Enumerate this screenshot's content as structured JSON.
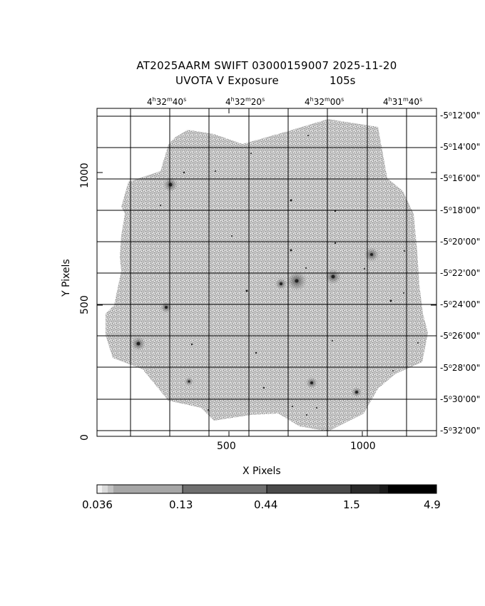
{
  "header": {
    "title_line1": "AT2025AARM SWIFT 03000159007 2025-11-20",
    "title_line2": "UVOTA V Exposure",
    "exposure": "105s"
  },
  "ra_axis": [
    {
      "h": "4",
      "m": "32",
      "s": "40"
    },
    {
      "h": "4",
      "m": "32",
      "s": "20"
    },
    {
      "h": "4",
      "m": "32",
      "s": "00"
    },
    {
      "h": "4",
      "m": "31",
      "s": "40"
    }
  ],
  "dec_axis": [
    {
      "d": "-5",
      "m": "12",
      "s": "00"
    },
    {
      "d": "-5",
      "m": "14",
      "s": "00"
    },
    {
      "d": "-5",
      "m": "16",
      "s": "00"
    },
    {
      "d": "-5",
      "m": "18",
      "s": "00"
    },
    {
      "d": "-5",
      "m": "20",
      "s": "00"
    },
    {
      "d": "-5",
      "m": "22",
      "s": "00"
    },
    {
      "d": "-5",
      "m": "24",
      "s": "00"
    },
    {
      "d": "-5",
      "m": "26",
      "s": "00"
    },
    {
      "d": "-5",
      "m": "28",
      "s": "00"
    },
    {
      "d": "-5",
      "m": "30",
      "s": "00"
    },
    {
      "d": "-5",
      "m": "32",
      "s": "00"
    }
  ],
  "x_axis": {
    "label": "X Pixels",
    "ticks": [
      "500",
      "1000"
    ]
  },
  "y_axis": {
    "label": "Y Pixels",
    "ticks": [
      "0",
      "500",
      "1000"
    ]
  },
  "colorbar": {
    "ticks": [
      "0.036",
      "0.13",
      "0.44",
      "1.5",
      "4.9"
    ]
  },
  "colors": {
    "frame": "#000000",
    "sky": "#a8a8a8",
    "background": "#ffffff"
  }
}
